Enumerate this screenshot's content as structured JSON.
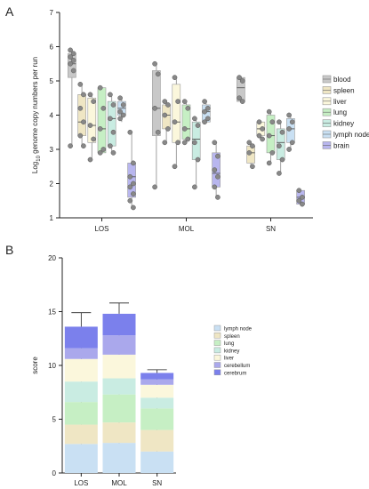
{
  "chart_data": [
    {
      "panel": "A",
      "type": "box",
      "ylabel": "Log10 genome copy numbers per run",
      "ylabel_parts": {
        "pre": "Log",
        "sub": "10",
        "post": " genome copy numbers per run"
      },
      "ylim": [
        1,
        7
      ],
      "yticks": [
        1,
        2,
        3,
        4,
        5,
        6,
        7
      ],
      "groups": [
        "LOS",
        "MOL",
        "SN"
      ],
      "series": [
        {
          "name": "blood",
          "color": "#c8c8c8",
          "boxes": [
            {
              "min": 3.1,
              "q1": 5.1,
              "median": 5.5,
              "q3": 5.8,
              "max": 5.9,
              "points": [
                5.9,
                5.8,
                5.7,
                5.6,
                5.5,
                5.3,
                3.1
              ]
            },
            {
              "min": 1.9,
              "q1": 3.4,
              "median": 4.2,
              "q3": 5.3,
              "max": 5.5,
              "points": [
                5.5,
                5.2,
                4.2,
                3.5,
                1.9
              ]
            },
            {
              "min": 4.4,
              "q1": 4.4,
              "median": 4.8,
              "q3": 5.1,
              "max": 5.1,
              "points": [
                5.1,
                5.0,
                4.5,
                4.4
              ]
            }
          ]
        },
        {
          "name": "spleen",
          "color": "#efe6c4",
          "boxes": [
            {
              "min": 3.1,
              "q1": 3.4,
              "median": 3.8,
              "q3": 4.6,
              "max": 4.9,
              "points": [
                4.9,
                4.6,
                4.2,
                3.8,
                3.4,
                3.1
              ]
            },
            {
              "min": 3.2,
              "q1": 3.6,
              "median": 4.0,
              "q3": 4.3,
              "max": 4.4,
              "points": [
                4.4,
                4.3,
                4.0,
                3.6,
                3.2
              ]
            },
            {
              "min": 2.5,
              "q1": 2.6,
              "median": 2.9,
              "q3": 3.1,
              "max": 3.2,
              "points": [
                3.2,
                3.1,
                2.9,
                2.5
              ]
            }
          ]
        },
        {
          "name": "liver",
          "color": "#fbf7dc",
          "boxes": [
            {
              "min": 2.7,
              "q1": 3.2,
              "median": 3.7,
              "q3": 4.5,
              "max": 4.6,
              "points": [
                4.6,
                4.4,
                3.7,
                3.3,
                2.7
              ]
            },
            {
              "min": 2.5,
              "q1": 3.2,
              "median": 3.8,
              "q3": 4.9,
              "max": 5.1,
              "points": [
                5.1,
                4.4,
                3.8,
                3.2,
                2.5
              ]
            },
            {
              "min": 3.3,
              "q1": 3.4,
              "median": 3.6,
              "q3": 3.8,
              "max": 3.8,
              "points": [
                3.8,
                3.6,
                3.4,
                3.3
              ]
            }
          ]
        },
        {
          "name": "lung",
          "color": "#c6efc4",
          "boxes": [
            {
              "min": 2.9,
              "q1": 2.9,
              "median": 3.6,
              "q3": 4.8,
              "max": 4.8,
              "points": [
                4.8,
                4.2,
                3.6,
                3.0,
                2.9
              ]
            },
            {
              "min": 3.2,
              "q1": 3.3,
              "median": 3.6,
              "q3": 4.3,
              "max": 4.4,
              "points": [
                4.4,
                4.2,
                3.6,
                3.3,
                3.2
              ]
            },
            {
              "min": 2.6,
              "q1": 2.9,
              "median": 3.4,
              "q3": 4.0,
              "max": 4.1,
              "points": [
                4.1,
                3.8,
                3.4,
                2.9,
                2.6
              ]
            }
          ]
        },
        {
          "name": "kidney",
          "color": "#c9ece2",
          "boxes": [
            {
              "min": 2.9,
              "q1": 3.1,
              "median": 3.9,
              "q3": 4.4,
              "max": 4.6,
              "points": [
                4.6,
                4.3,
                3.9,
                3.5,
                3.1,
                2.9
              ]
            },
            {
              "min": 1.9,
              "q1": 2.7,
              "median": 3.3,
              "q3": 3.8,
              "max": 3.9,
              "points": [
                3.9,
                3.7,
                3.2,
                2.7,
                1.9
              ]
            },
            {
              "min": 2.3,
              "q1": 2.7,
              "median": 3.2,
              "q3": 3.6,
              "max": 3.8,
              "points": [
                3.8,
                3.5,
                3.1,
                2.7,
                2.3
              ]
            }
          ]
        },
        {
          "name": "lymph node",
          "color": "#c9e0f3",
          "boxes": [
            {
              "min": 3.8,
              "q1": 4.0,
              "median": 4.2,
              "q3": 4.4,
              "max": 4.5,
              "points": [
                4.5,
                4.3,
                4.1,
                4.0,
                3.9
              ]
            },
            {
              "min": 3.8,
              "q1": 3.8,
              "median": 4.1,
              "q3": 4.3,
              "max": 4.4,
              "points": [
                4.4,
                4.2,
                4.1,
                3.9,
                3.8
              ]
            },
            {
              "min": 3.0,
              "q1": 3.2,
              "median": 3.6,
              "q3": 3.9,
              "max": 4.0,
              "points": [
                4.0,
                3.8,
                3.6,
                3.2,
                3.0
              ]
            }
          ]
        },
        {
          "name": "brain",
          "color": "#b8b6ee",
          "boxes": [
            {
              "min": 1.3,
              "q1": 1.6,
              "median": 2.2,
              "q3": 2.6,
              "max": 3.5,
              "points": [
                3.5,
                2.6,
                2.2,
                2.0,
                1.9,
                1.7,
                1.5,
                1.3
              ]
            },
            {
              "min": 1.6,
              "q1": 1.9,
              "median": 2.3,
              "q3": 2.9,
              "max": 3.2,
              "points": [
                3.2,
                2.8,
                2.4,
                2.2,
                1.9,
                1.6
              ]
            },
            {
              "min": 1.4,
              "q1": 1.4,
              "median": 1.6,
              "q3": 1.8,
              "max": 1.8,
              "points": [
                1.8,
                1.6,
                1.5,
                1.4
              ]
            }
          ]
        }
      ],
      "legend_position": "right"
    },
    {
      "panel": "B",
      "type": "bar",
      "stacked": true,
      "ylabel": "score",
      "ylim": [
        0,
        20
      ],
      "yticks": [
        0,
        5,
        10,
        15,
        20
      ],
      "categories": [
        "LOS",
        "MOL",
        "SN"
      ],
      "series": [
        {
          "name": "cerebrum",
          "color": "#7b80ec",
          "values": [
            2.0,
            2.0,
            0.6
          ],
          "errors": [
            1.3,
            1.0,
            0.3
          ]
        },
        {
          "name": "cerebellum",
          "color": "#aaa8ec",
          "values": [
            1.0,
            1.8,
            0.5
          ],
          "errors": [
            0.5,
            0.8,
            0.3
          ]
        },
        {
          "name": "liver",
          "color": "#fbf7dc",
          "values": [
            2.1,
            2.2,
            1.2
          ],
          "errors": [
            0.6,
            0.5,
            0.3
          ]
        },
        {
          "name": "kidney",
          "color": "#c9ece2",
          "values": [
            1.9,
            1.5,
            1.0
          ],
          "errors": [
            0.5,
            0.4,
            0.4
          ]
        },
        {
          "name": "lung",
          "color": "#c6efc4",
          "values": [
            2.1,
            2.6,
            2.0
          ],
          "errors": [
            0.5,
            0.6,
            0.6
          ]
        },
        {
          "name": "spleen",
          "color": "#efe6c4",
          "values": [
            1.8,
            1.9,
            2.0
          ],
          "errors": [
            0.4,
            0.3,
            0.5
          ]
        },
        {
          "name": "lymph node",
          "color": "#c9e0f3",
          "values": [
            2.7,
            2.8,
            2.0
          ],
          "errors": [
            0.3,
            0.3,
            0.3
          ]
        }
      ],
      "legend_order": [
        "lymph node",
        "spleen",
        "lung",
        "kidney",
        "liver",
        "cerebellum",
        "cerebrum"
      ],
      "legend_position": "right"
    }
  ]
}
